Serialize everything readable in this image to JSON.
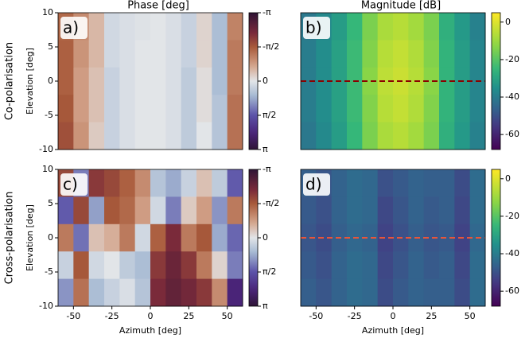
{
  "chart_data": [
    {
      "type": "heatmap",
      "panel_label": "a)",
      "title": "Phase [deg]",
      "row_label": "Co-polarisation",
      "ylabel": "Elevation [deg]",
      "x": [
        -55,
        -45,
        -35,
        -25,
        -15,
        -5,
        5,
        15,
        25,
        35,
        45,
        55
      ],
      "y": [
        8,
        4,
        0,
        -4,
        -8
      ],
      "values": [
        [
          -1.4,
          -1.0,
          -0.5,
          0.2,
          0.1,
          0.05,
          0.0,
          0.1,
          0.3,
          -0.2,
          0.6,
          -1.1
        ],
        [
          -1.5,
          -0.9,
          -0.5,
          0.2,
          0.1,
          0.0,
          0.0,
          0.1,
          0.3,
          -0.2,
          0.6,
          -1.2
        ],
        [
          -1.5,
          -0.8,
          -0.4,
          0.3,
          0.1,
          0.0,
          0.0,
          0.1,
          0.4,
          -0.1,
          0.6,
          -1.2
        ],
        [
          -1.6,
          -0.8,
          -0.4,
          0.3,
          0.1,
          0.0,
          0.0,
          0.1,
          0.4,
          -0.1,
          0.5,
          -1.3
        ],
        [
          -1.7,
          -0.9,
          -0.3,
          0.3,
          0.1,
          0.0,
          0.0,
          0.1,
          0.4,
          0.0,
          0.5,
          -1.3
        ]
      ],
      "xlim": [
        -60,
        60
      ],
      "ylim": [
        -10,
        10
      ],
      "yticks": [
        -10,
        -5,
        0,
        5,
        10
      ],
      "colorbar": {
        "lim": [
          3.1416,
          -3.1416
        ],
        "ticks": [
          {
            "value": -3.1416,
            "label": "-π"
          },
          {
            "value": -1.5708,
            "label": "-π/2"
          },
          0,
          {
            "value": 1.5708,
            "label": "π/2"
          },
          {
            "value": 3.1416,
            "label": "π"
          }
        ]
      },
      "colorscale": [
        [
          -3.1416,
          "#2f1436"
        ],
        [
          -2.2,
          "#7a2a3a"
        ],
        [
          -1.5708,
          "#a85a3a"
        ],
        [
          -0.7,
          "#d4a58c"
        ],
        [
          0,
          "#e2e5e8"
        ],
        [
          0.7,
          "#a3b7d2"
        ],
        [
          1.5708,
          "#5b52a8"
        ],
        [
          2.4,
          "#4a2478"
        ],
        [
          3.1416,
          "#2f1436"
        ]
      ]
    },
    {
      "type": "heatmap",
      "panel_label": "b)",
      "title": "Magnitude [dB]",
      "x": [
        -55,
        -45,
        -35,
        -25,
        -15,
        -5,
        5,
        15,
        25,
        35,
        45,
        55
      ],
      "y": [
        8,
        4,
        0,
        -4,
        -8
      ],
      "values": [
        [
          -41,
          -37,
          -32,
          -25,
          -15,
          -8,
          -6,
          -9,
          -15,
          -27,
          -33,
          -39
        ],
        [
          -40,
          -36,
          -31,
          -24,
          -14,
          -6,
          -4,
          -7,
          -14,
          -26,
          -32,
          -38
        ],
        [
          -40,
          -36,
          -31,
          -24,
          -13,
          -5,
          -3,
          -6,
          -13,
          -26,
          -32,
          -38
        ],
        [
          -40,
          -36,
          -31,
          -24,
          -14,
          -6,
          -4,
          -7,
          -14,
          -26,
          -32,
          -38
        ],
        [
          -41,
          -37,
          -32,
          -25,
          -15,
          -8,
          -6,
          -9,
          -15,
          -27,
          -33,
          -39
        ]
      ],
      "xlim": [
        -60,
        60
      ],
      "ylim": [
        -10,
        10
      ],
      "hline": {
        "y": 0,
        "color": "#8b0000"
      },
      "colorbar": {
        "lim": [
          -68,
          5
        ],
        "ticks": [
          -60,
          -40,
          -20,
          0
        ]
      },
      "colorscale": [
        [
          -68,
          "#440154"
        ],
        [
          -55,
          "#443a83"
        ],
        [
          -45,
          "#31688e"
        ],
        [
          -35,
          "#21918c"
        ],
        [
          -25,
          "#35b779"
        ],
        [
          -12,
          "#90d743"
        ],
        [
          5,
          "#fde725"
        ]
      ]
    },
    {
      "type": "heatmap",
      "panel_label": "c)",
      "row_label": "Cross-polarisation",
      "ylabel": "Elevation [deg]",
      "xlabel": "Azimuth [deg]",
      "x": [
        -55,
        -45,
        -35,
        -25,
        -15,
        -5,
        5,
        15,
        25,
        35,
        45,
        55
      ],
      "y": [
        8,
        4,
        0,
        -4,
        -8
      ],
      "values": [
        [
          -1.8,
          1.2,
          -2.0,
          -1.8,
          -1.5,
          -1.0,
          0.5,
          0.8,
          0.3,
          -0.4,
          0.4,
          1.5
        ],
        [
          1.5,
          -1.8,
          0.9,
          -1.6,
          -1.4,
          -0.8,
          0.2,
          1.2,
          -0.3,
          -0.8,
          1.0,
          -1.2
        ],
        [
          -1.2,
          1.3,
          -0.4,
          -0.6,
          -1.2,
          0.2,
          -1.5,
          -2.2,
          -1.2,
          -1.6,
          0.8,
          1.4
        ],
        [
          0.3,
          -1.6,
          0.2,
          0.0,
          0.4,
          0.6,
          -2.0,
          -2.4,
          -2.0,
          -1.2,
          -0.2,
          1.2
        ],
        [
          1.0,
          -1.3,
          0.6,
          0.3,
          0.1,
          0.5,
          -2.2,
          -2.5,
          -2.3,
          -2.0,
          -1.0,
          2.4
        ]
      ],
      "xlim": [
        -60,
        60
      ],
      "ylim": [
        -10,
        10
      ],
      "xticks": [
        -50,
        -25,
        0,
        25,
        50
      ],
      "yticks": [
        -10,
        -5,
        0,
        5,
        10
      ],
      "colorbar": {
        "lim": [
          3.1416,
          -3.1416
        ],
        "ticks": [
          {
            "value": -3.1416,
            "label": "-π"
          },
          {
            "value": -1.5708,
            "label": "-π/2"
          },
          0,
          {
            "value": 1.5708,
            "label": "π/2"
          },
          {
            "value": 3.1416,
            "label": "π"
          }
        ]
      },
      "colorscale": [
        [
          -3.1416,
          "#2f1436"
        ],
        [
          -2.2,
          "#7a2a3a"
        ],
        [
          -1.5708,
          "#a85a3a"
        ],
        [
          -0.7,
          "#d4a58c"
        ],
        [
          0,
          "#e2e5e8"
        ],
        [
          0.7,
          "#a3b7d2"
        ],
        [
          1.5708,
          "#5b52a8"
        ],
        [
          2.4,
          "#4a2478"
        ],
        [
          3.1416,
          "#2f1436"
        ]
      ]
    },
    {
      "type": "heatmap",
      "panel_label": "d)",
      "xlabel": "Azimuth [deg]",
      "x": [
        -55,
        -45,
        -35,
        -25,
        -15,
        -5,
        5,
        15,
        25,
        35,
        45,
        55
      ],
      "y": [
        8,
        4,
        0,
        -4,
        -8
      ],
      "values": [
        [
          -47,
          -49,
          -46,
          -44,
          -45,
          -50,
          -48,
          -46,
          -47,
          -47,
          -51,
          -44
        ],
        [
          -48,
          -50,
          -46,
          -44,
          -45,
          -52,
          -49,
          -46,
          -48,
          -47,
          -52,
          -44
        ],
        [
          -49,
          -51,
          -47,
          -45,
          -46,
          -53,
          -50,
          -47,
          -49,
          -48,
          -53,
          -45
        ],
        [
          -48,
          -50,
          -46,
          -44,
          -45,
          -52,
          -49,
          -46,
          -48,
          -47,
          -52,
          -44
        ],
        [
          -47,
          -49,
          -46,
          -44,
          -45,
          -51,
          -48,
          -46,
          -47,
          -47,
          -51,
          -44
        ]
      ],
      "xlim": [
        -60,
        60
      ],
      "ylim": [
        -10,
        10
      ],
      "xticks": [
        -50,
        -25,
        0,
        25,
        50
      ],
      "hline": {
        "y": 0,
        "color": "#e8553a"
      },
      "colorbar": {
        "lim": [
          -68,
          5
        ],
        "ticks": [
          -60,
          -40,
          -20,
          0
        ]
      },
      "colorscale": [
        [
          -68,
          "#440154"
        ],
        [
          -55,
          "#443a83"
        ],
        [
          -45,
          "#31688e"
        ],
        [
          -35,
          "#21918c"
        ],
        [
          -25,
          "#35b779"
        ],
        [
          -12,
          "#90d743"
        ],
        [
          5,
          "#fde725"
        ]
      ]
    }
  ]
}
